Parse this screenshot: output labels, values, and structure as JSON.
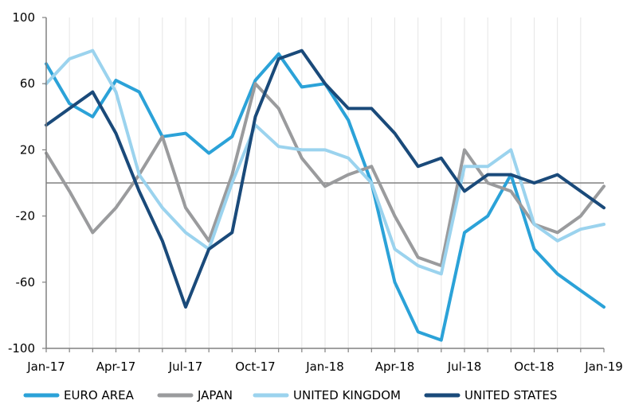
{
  "chart_data": {
    "type": "line",
    "title": "",
    "xlabel": "",
    "ylabel": "",
    "ylim": [
      -100,
      100
    ],
    "yticks": [
      100,
      60,
      20,
      -20,
      -60,
      -100
    ],
    "ytick_labels": [
      "100",
      "60",
      "20",
      "-20",
      "-60",
      "-100"
    ],
    "xlim": [
      "2017-01",
      "2019-01"
    ],
    "xticks": [
      {
        "label": "Jan-17",
        "month": "2017-01"
      },
      {
        "label": "Apr-17",
        "month": "2017-04"
      },
      {
        "label": "Jul-17",
        "month": "2017-07"
      },
      {
        "label": "Oct-17",
        "month": "2017-10"
      },
      {
        "label": "Jan-18",
        "month": "2018-01"
      },
      {
        "label": "Apr-18",
        "month": "2018-04"
      },
      {
        "label": "Jul-18",
        "month": "2018-07"
      },
      {
        "label": "Oct-18",
        "month": "2018-10"
      },
      {
        "label": "Jan-19",
        "month": "2019-01"
      }
    ],
    "grid": "vertical",
    "zero_line": true,
    "legend_position": "bottom",
    "x": [
      "2017-01",
      "2017-02",
      "2017-03",
      "2017-04",
      "2017-05",
      "2017-06",
      "2017-07",
      "2017-08",
      "2017-09",
      "2017-10",
      "2017-11",
      "2017-12",
      "2018-01",
      "2018-02",
      "2018-03",
      "2018-04",
      "2018-05",
      "2018-06",
      "2018-07",
      "2018-08",
      "2018-09",
      "2018-10",
      "2018-11",
      "2018-12",
      "2019-01"
    ],
    "series": [
      {
        "name": "EURO AREA",
        "color": "#2ba2d8",
        "values": [
          72,
          48,
          40,
          62,
          55,
          28,
          30,
          18,
          28,
          62,
          78,
          58,
          60,
          38,
          0,
          -60,
          -90,
          -95,
          -30,
          -20,
          5,
          -40,
          -55,
          -65,
          -75
        ]
      },
      {
        "name": "JAPAN",
        "color": "#9a9b9d",
        "values": [
          18,
          -5,
          -30,
          -15,
          5,
          28,
          -15,
          -35,
          5,
          60,
          45,
          15,
          -2,
          5,
          10,
          -20,
          -45,
          -50,
          20,
          0,
          -5,
          -25,
          -30,
          -20,
          -2
        ]
      },
      {
        "name": "UNITED KINGDOM",
        "color": "#9bd3ee",
        "values": [
          60,
          75,
          80,
          55,
          5,
          -15,
          -30,
          -40,
          0,
          35,
          22,
          20,
          20,
          15,
          0,
          -40,
          -50,
          -55,
          10,
          10,
          20,
          -25,
          -35,
          -28,
          -25
        ]
      },
      {
        "name": "UNITED STATES",
        "color": "#1a4a7a",
        "values": [
          35,
          45,
          55,
          30,
          -5,
          -35,
          -75,
          -40,
          -30,
          40,
          75,
          80,
          60,
          45,
          45,
          30,
          10,
          15,
          -5,
          5,
          5,
          0,
          5,
          -5,
          -15
        ]
      }
    ]
  }
}
